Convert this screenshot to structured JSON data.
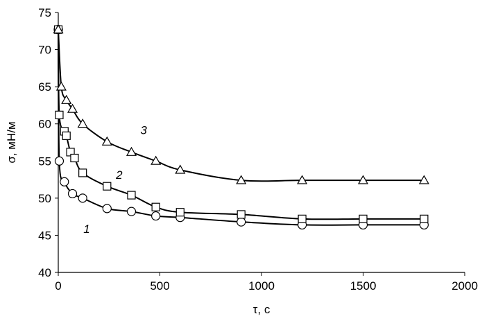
{
  "chart_data": {
    "type": "line",
    "title": "",
    "xlabel": "τ, с",
    "ylabel": "σ, мН/м",
    "xlim": [
      0,
      2000
    ],
    "ylim": [
      40,
      75
    ],
    "xticks": [
      0,
      500,
      1000,
      1500,
      2000
    ],
    "yticks": [
      40,
      45,
      50,
      55,
      60,
      65,
      70,
      75
    ],
    "grid": false,
    "series": [
      {
        "label": "1",
        "marker": "circle",
        "x": [
          0,
          5,
          30,
          70,
          120,
          240,
          360,
          480,
          600,
          900,
          1200,
          1500,
          1800
        ],
        "y": [
          72.7,
          55.0,
          52.2,
          50.6,
          50.0,
          48.6,
          48.2,
          47.6,
          47.4,
          46.8,
          46.4,
          46.4,
          46.4
        ]
      },
      {
        "label": "2",
        "marker": "square",
        "x": [
          0,
          5,
          30,
          40,
          60,
          80,
          120,
          240,
          360,
          480,
          600,
          900,
          1200,
          1500,
          1800
        ],
        "y": [
          72.7,
          61.2,
          59.0,
          58.4,
          56.2,
          55.4,
          53.4,
          51.6,
          50.4,
          48.8,
          48.1,
          47.8,
          47.2,
          47.2,
          47.2
        ]
      },
      {
        "label": "3",
        "marker": "triangle",
        "x": [
          0,
          15,
          40,
          70,
          120,
          240,
          360,
          480,
          600,
          900,
          1200,
          1500,
          1800
        ],
        "y": [
          72.7,
          65.0,
          63.2,
          62.0,
          60.0,
          57.6,
          56.2,
          55.0,
          53.8,
          52.4,
          52.4,
          52.4,
          52.4
        ]
      }
    ],
    "curve_labels": [
      {
        "text": "1",
        "x": 140,
        "y": 45.3
      },
      {
        "text": "2",
        "x": 300,
        "y": 52.6
      },
      {
        "text": "3",
        "x": 420,
        "y": 58.6
      }
    ]
  }
}
